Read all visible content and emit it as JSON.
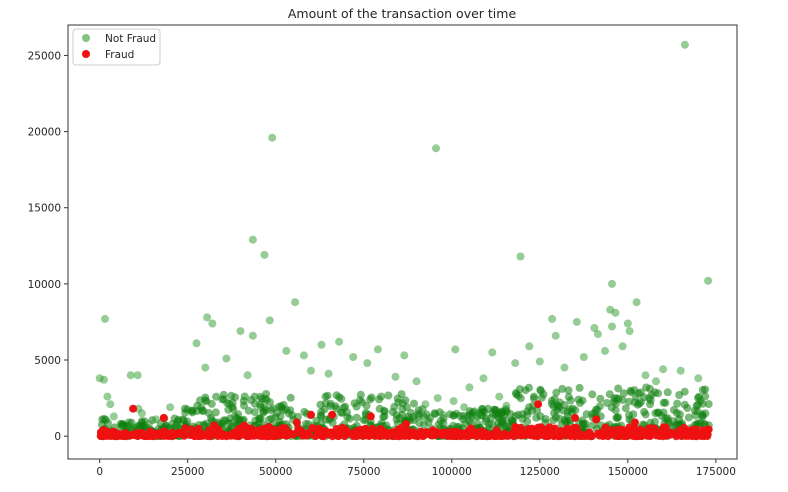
{
  "chart_data": {
    "type": "scatter",
    "title": "Amount of the transaction over time",
    "xlabel": "",
    "ylabel": "",
    "xlim": [
      -9000,
      181000
    ],
    "ylim": [
      -1500,
      27000
    ],
    "xticks": [
      0,
      25000,
      50000,
      75000,
      100000,
      125000,
      150000,
      175000
    ],
    "yticks": [
      0,
      5000,
      10000,
      15000,
      20000,
      25000
    ],
    "grid": false,
    "legend_position": "top-left",
    "series": [
      {
        "name": "Not Fraud",
        "color": "#2e9a2e",
        "dense_color": "#0f7f0f",
        "opacity": 0.5,
        "marker": "circle",
        "points": [
          [
            1500,
            7700
          ],
          [
            0,
            3800
          ],
          [
            1200,
            3700
          ],
          [
            2200,
            2600
          ],
          [
            8800,
            4000
          ],
          [
            10800,
            4000
          ],
          [
            27500,
            6100
          ],
          [
            30500,
            7800
          ],
          [
            32000,
            7400
          ],
          [
            40000,
            6900
          ],
          [
            43500,
            6600
          ],
          [
            43500,
            12900
          ],
          [
            46800,
            11900
          ],
          [
            48300,
            7600
          ],
          [
            49000,
            19600
          ],
          [
            55500,
            8800
          ],
          [
            53000,
            5600
          ],
          [
            58000,
            5300
          ],
          [
            63000,
            6000
          ],
          [
            68000,
            6200
          ],
          [
            72000,
            5200
          ],
          [
            79000,
            5700
          ],
          [
            86500,
            5300
          ],
          [
            95500,
            18900
          ],
          [
            101000,
            5700
          ],
          [
            111500,
            5500
          ],
          [
            119500,
            11800
          ],
          [
            122000,
            5900
          ],
          [
            128500,
            7700
          ],
          [
            129500,
            6600
          ],
          [
            135500,
            7500
          ],
          [
            140500,
            7100
          ],
          [
            141500,
            6700
          ],
          [
            145000,
            8300
          ],
          [
            145500,
            10000
          ],
          [
            146500,
            8100
          ],
          [
            145500,
            7200
          ],
          [
            150000,
            7400
          ],
          [
            150500,
            6900
          ],
          [
            152500,
            8800
          ],
          [
            166200,
            25700
          ],
          [
            172800,
            10200
          ],
          [
            148500,
            5900
          ],
          [
            143500,
            5600
          ],
          [
            137500,
            5200
          ],
          [
            160000,
            4400
          ],
          [
            165000,
            4300
          ],
          [
            170000,
            3800
          ],
          [
            125000,
            4900
          ],
          [
            118000,
            4800
          ],
          [
            90000,
            3600
          ],
          [
            105000,
            3200
          ],
          [
            76000,
            4800
          ],
          [
            36000,
            5100
          ],
          [
            30000,
            4500
          ],
          [
            42000,
            4000
          ],
          [
            60000,
            4300
          ],
          [
            65000,
            4100
          ],
          [
            84000,
            3900
          ],
          [
            132000,
            4500
          ],
          [
            155000,
            4000
          ],
          [
            158000,
            3600
          ],
          [
            96000,
            2500
          ],
          [
            109000,
            3800
          ],
          [
            4000,
            1300
          ],
          [
            12000,
            1500
          ],
          [
            20000,
            1900
          ],
          [
            16000,
            1100
          ],
          [
            3000,
            2100
          ],
          [
            14000,
            800
          ],
          [
            22000,
            600
          ],
          [
            6000,
            400
          ],
          [
            11000,
            1800
          ],
          [
            9000,
            600
          ],
          [
            100500,
            2300
          ],
          [
            103500,
            1900
          ],
          [
            97500,
            1400
          ],
          [
            92500,
            2100
          ],
          [
            113500,
            2600
          ],
          [
            115500,
            2000
          ],
          [
            107500,
            1300
          ]
        ],
        "dense_bands": [
          {
            "x_start": 0,
            "x_end": 24000,
            "y_top": 1200
          },
          {
            "x_start": 24000,
            "x_end": 90000,
            "y_top": 2800
          },
          {
            "x_start": 90000,
            "x_end": 117000,
            "y_top": 1800
          },
          {
            "x_start": 117000,
            "x_end": 173000,
            "y_top": 3200
          }
        ]
      },
      {
        "name": "Fraud",
        "color": "#ee1111",
        "opacity": 1,
        "marker": "circle",
        "points": [
          [
            9500,
            1800
          ],
          [
            18200,
            1200
          ],
          [
            32500,
            700
          ],
          [
            56000,
            900
          ],
          [
            60000,
            1400
          ],
          [
            66000,
            1400
          ],
          [
            77000,
            1300
          ],
          [
            41000,
            700
          ],
          [
            124500,
            2100
          ],
          [
            135000,
            1200
          ],
          [
            141000,
            1100
          ],
          [
            152000,
            900
          ],
          [
            168000,
            400
          ],
          [
            48000,
            600
          ],
          [
            87000,
            800
          ],
          [
            105500,
            500
          ],
          [
            118000,
            600
          ],
          [
            157500,
            500
          ],
          [
            1000,
            400
          ]
        ],
        "dense_bands": [
          {
            "x_start": 0,
            "x_end": 24000,
            "y_top": 300
          },
          {
            "x_start": 24000,
            "x_end": 90000,
            "y_top": 550
          },
          {
            "x_start": 90000,
            "x_end": 117000,
            "y_top": 400
          },
          {
            "x_start": 117000,
            "x_end": 173000,
            "y_top": 600
          }
        ]
      }
    ]
  }
}
